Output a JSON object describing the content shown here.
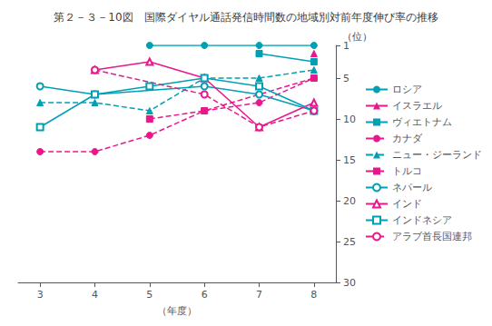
{
  "chart_data": {
    "type": "line",
    "title": "第２－３－10図　国際ダイヤル通話発信時間数の地域別対前年度伸び率の推移",
    "xlabel": "（年度）",
    "ylabel": "（位）",
    "x": [
      3,
      4,
      5,
      6,
      7,
      8
    ],
    "xlim": [
      2.6,
      8.4
    ],
    "xticks": [
      3,
      4,
      5,
      6,
      7,
      8
    ],
    "ylim": [
      30,
      1
    ],
    "yticks": [
      1,
      5,
      10,
      15,
      20,
      25,
      30
    ],
    "grid": false,
    "legend": "right",
    "series": [
      {
        "name": "ロシア",
        "color": "#00a0b4",
        "marker": "circle",
        "line_style": "solid",
        "values": [
          null,
          null,
          1,
          1,
          1,
          1
        ]
      },
      {
        "name": "イスラエル",
        "color": "#e8188c",
        "marker": "triangle",
        "line_style": "solid",
        "values": [
          null,
          null,
          null,
          null,
          null,
          2
        ]
      },
      {
        "name": "ヴィエトナム",
        "color": "#00a0b4",
        "marker": "square",
        "line_style": "solid",
        "values": [
          null,
          null,
          null,
          null,
          2,
          3
        ]
      },
      {
        "name": "カナダ",
        "color": "#e8188c",
        "marker": "circle",
        "line_style": "dashed",
        "values": [
          14,
          14,
          12,
          9,
          8,
          5
        ]
      },
      {
        "name": "ニュー・ジーランド",
        "color": "#00a0b4",
        "marker": "triangle",
        "line_style": "dashed",
        "values": [
          8,
          8,
          9,
          5,
          5,
          4
        ]
      },
      {
        "name": "トルコ",
        "color": "#e8188c",
        "marker": "square",
        "line_style": "dashed",
        "values": [
          null,
          null,
          10,
          9,
          null,
          5
        ]
      },
      {
        "name": "ネパール",
        "color": "#00a0b4",
        "marker": "open circle",
        "line_style": "solid",
        "values": [
          6,
          7,
          null,
          6,
          7,
          9
        ]
      },
      {
        "name": "インド",
        "color": "#e8188c",
        "marker": "open triangle",
        "line_style": "solid",
        "values": [
          null,
          4,
          3,
          5,
          11,
          8
        ]
      },
      {
        "name": "インドネシア",
        "color": "#00a0b4",
        "marker": "open square",
        "line_style": "solid",
        "values": [
          11,
          7,
          6,
          5,
          6,
          9
        ]
      },
      {
        "name": "アラブ首長国連邦",
        "color": "#e8188c",
        "marker": "open circle",
        "line_style": "dashed",
        "values": [
          null,
          4,
          null,
          7,
          11,
          9
        ]
      }
    ]
  }
}
